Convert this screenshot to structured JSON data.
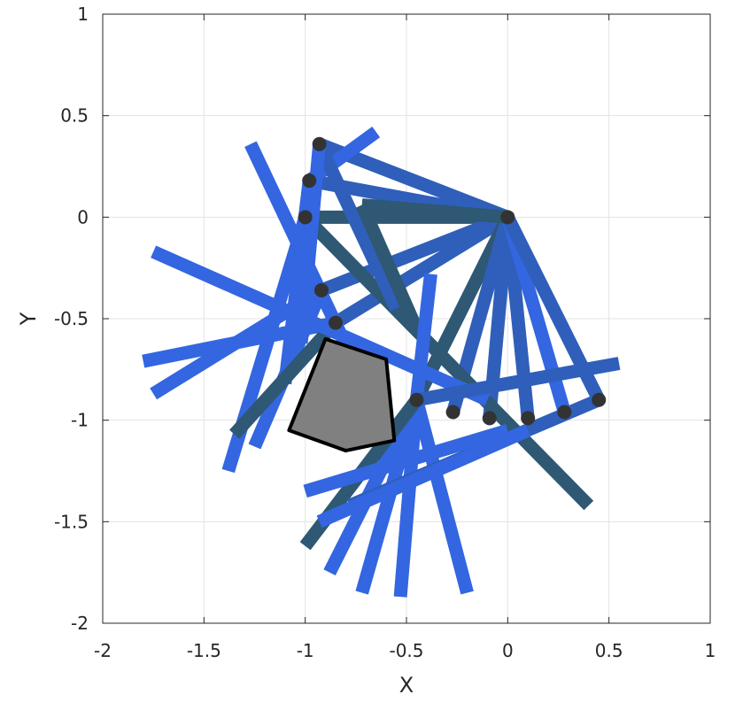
{
  "chart_data": {
    "type": "scatter",
    "title": "",
    "xlabel": "X",
    "ylabel": "Y",
    "xlim": [
      -2,
      1
    ],
    "ylim": [
      -2,
      1
    ],
    "grid": true,
    "x_ticks": [
      -2,
      -1.5,
      -1,
      -0.5,
      0,
      0.5,
      1
    ],
    "y_ticks": [
      -2,
      -1.5,
      -1,
      -0.5,
      0,
      0.5,
      1
    ],
    "x_tick_labels": [
      "-2",
      "-1.5",
      "-1",
      "-0.5",
      "0",
      "0.5",
      "1"
    ],
    "y_tick_labels": [
      "-2",
      "-1.5",
      "-1",
      "-0.5",
      "0",
      "0.5",
      "1"
    ],
    "colors": {
      "blue": "#3366e0",
      "mid": "#2f5fba",
      "teal": "#2e5873",
      "joint": "#333333",
      "obstacle_fill": "#808080",
      "obstacle_edge": "#000000",
      "grid": "#e3e3e3"
    },
    "joints": [
      {
        "x": 0.0,
        "y": 0.0
      },
      {
        "x": -1.0,
        "y": 0.0
      },
      {
        "x": -0.98,
        "y": 0.18
      },
      {
        "x": -0.93,
        "y": 0.36
      },
      {
        "x": -0.92,
        "y": -0.36
      },
      {
        "x": -0.85,
        "y": -0.52
      },
      {
        "x": -0.45,
        "y": -0.9
      },
      {
        "x": -0.27,
        "y": -0.96
      },
      {
        "x": -0.09,
        "y": -0.99
      },
      {
        "x": 0.1,
        "y": -0.99
      },
      {
        "x": 0.28,
        "y": -0.96
      },
      {
        "x": 0.45,
        "y": -0.9
      }
    ],
    "links": [
      {
        "from": [
          0.0,
          0.0
        ],
        "to": [
          -1.0,
          0.0
        ],
        "shade": "teal"
      },
      {
        "from": [
          0.0,
          0.0
        ],
        "to": [
          -0.98,
          0.18
        ],
        "shade": "mid"
      },
      {
        "from": [
          0.0,
          0.0
        ],
        "to": [
          -0.93,
          0.36
        ],
        "shade": "mid"
      },
      {
        "from": [
          0.0,
          0.0
        ],
        "to": [
          -0.92,
          -0.36
        ],
        "shade": "mid"
      },
      {
        "from": [
          0.0,
          0.0
        ],
        "to": [
          -0.85,
          -0.52
        ],
        "shade": "mid"
      },
      {
        "from": [
          0.0,
          0.0
        ],
        "to": [
          -0.45,
          -0.9
        ],
        "shade": "teal"
      },
      {
        "from": [
          0.0,
          0.0
        ],
        "to": [
          -0.27,
          -0.96
        ],
        "shade": "mid"
      },
      {
        "from": [
          0.0,
          0.0
        ],
        "to": [
          -0.09,
          -0.99
        ],
        "shade": "mid"
      },
      {
        "from": [
          0.0,
          0.0
        ],
        "to": [
          0.1,
          -0.99
        ],
        "shade": "mid"
      },
      {
        "from": [
          0.0,
          0.0
        ],
        "to": [
          0.28,
          -0.96
        ],
        "shade": "blue"
      },
      {
        "from": [
          0.0,
          0.0
        ],
        "to": [
          0.45,
          -0.9
        ],
        "shade": "mid"
      },
      {
        "from": [
          0.0,
          0.0
        ],
        "to": [
          -0.72,
          0.06
        ],
        "shade": "teal"
      },
      {
        "from": [
          -1.0,
          0.0
        ],
        "to": [
          -1.38,
          -1.25
        ],
        "shade": "blue"
      },
      {
        "from": [
          -1.0,
          0.0
        ],
        "to": [
          0.4,
          -1.42
        ],
        "shade": "teal"
      },
      {
        "from": [
          -0.98,
          0.18
        ],
        "to": [
          -1.1,
          -0.82
        ],
        "shade": "blue"
      },
      {
        "from": [
          -0.98,
          0.18
        ],
        "to": [
          -0.65,
          0.42
        ],
        "shade": "blue"
      },
      {
        "from": [
          -0.93,
          0.36
        ],
        "to": [
          -0.55,
          -0.45
        ],
        "shade": "mid"
      },
      {
        "from": [
          -0.93,
          0.36
        ],
        "to": [
          -1.02,
          -0.62
        ],
        "shade": "blue"
      },
      {
        "from": [
          -0.92,
          -0.36
        ],
        "to": [
          -1.75,
          -0.87
        ],
        "shade": "blue"
      },
      {
        "from": [
          -0.92,
          -0.36
        ],
        "to": [
          -1.25,
          -1.13
        ],
        "shade": "blue"
      },
      {
        "from": [
          -0.85,
          -0.52
        ],
        "to": [
          -1.8,
          -0.71
        ],
        "shade": "blue"
      },
      {
        "from": [
          -0.85,
          -0.52
        ],
        "to": [
          -1.35,
          -1.07
        ],
        "shade": "teal"
      },
      {
        "from": [
          -1.27,
          0.36
        ],
        "to": [
          -0.6,
          -1.05
        ],
        "shade": "blue"
      },
      {
        "from": [
          -1.75,
          -0.17
        ],
        "to": [
          -0.1,
          -0.9
        ],
        "shade": "blue"
      },
      {
        "from": [
          -0.72,
          0.06
        ],
        "to": [
          -0.45,
          -0.55
        ],
        "shade": "teal"
      },
      {
        "from": [
          -0.45,
          -0.9
        ],
        "to": [
          -0.38,
          -0.28
        ],
        "shade": "blue"
      },
      {
        "from": [
          -0.45,
          -0.9
        ],
        "to": [
          -0.2,
          -1.85
        ],
        "shade": "blue"
      },
      {
        "from": [
          -0.45,
          -0.9
        ],
        "to": [
          -0.53,
          -1.87
        ],
        "shade": "blue"
      },
      {
        "from": [
          -0.45,
          -0.9
        ],
        "to": [
          -0.72,
          -1.85
        ],
        "shade": "blue"
      },
      {
        "from": [
          -0.45,
          -0.9
        ],
        "to": [
          -0.88,
          -1.75
        ],
        "shade": "blue"
      },
      {
        "from": [
          -0.45,
          -0.9
        ],
        "to": [
          -1.0,
          -1.62
        ],
        "shade": "teal"
      },
      {
        "from": [
          -0.45,
          -0.9
        ],
        "to": [
          0.55,
          -0.72
        ],
        "shade": "mid"
      },
      {
        "from": [
          0.45,
          -0.9
        ],
        "to": [
          -0.78,
          -1.42
        ],
        "shade": "mid"
      },
      {
        "from": [
          -1.0,
          -1.35
        ],
        "to": [
          0.0,
          -1.05
        ],
        "shade": "blue"
      },
      {
        "from": [
          -0.93,
          -1.5
        ],
        "to": [
          0.1,
          -1.05
        ],
        "shade": "blue"
      }
    ],
    "obstacle": [
      {
        "x": -0.9,
        "y": -0.6
      },
      {
        "x": -0.6,
        "y": -0.7
      },
      {
        "x": -0.56,
        "y": -1.1
      },
      {
        "x": -0.8,
        "y": -1.15
      },
      {
        "x": -1.08,
        "y": -1.05
      }
    ]
  }
}
